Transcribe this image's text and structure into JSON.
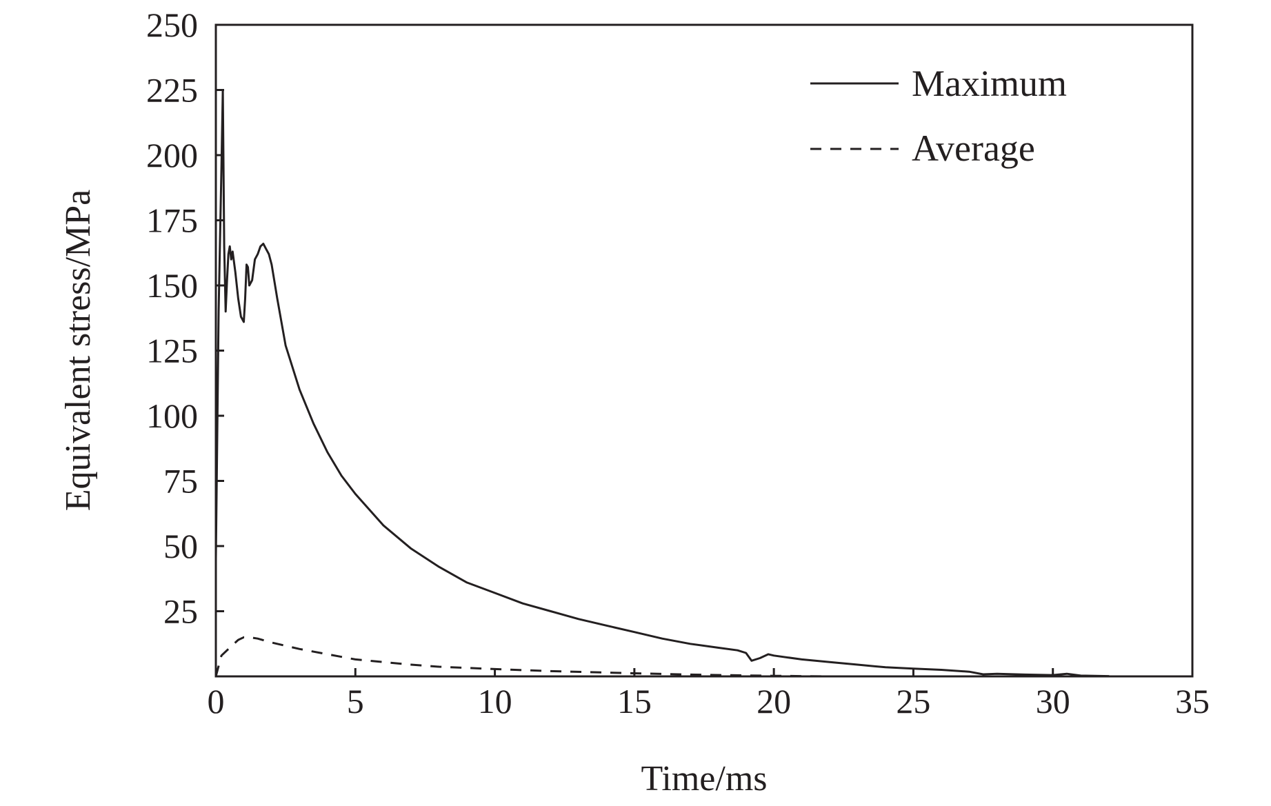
{
  "chart_data": {
    "type": "line",
    "title": "",
    "xlabel": "Time/ms",
    "ylabel": "Equivalent stress/MPa",
    "xlim": [
      0,
      35
    ],
    "ylim": [
      0,
      250
    ],
    "x_ticks": [
      0,
      5,
      10,
      15,
      20,
      25,
      30,
      35
    ],
    "y_ticks": [
      25,
      50,
      75,
      100,
      125,
      150,
      175,
      200,
      225,
      250
    ],
    "grid": false,
    "legend_position": "top-right",
    "line_color": "#231f20",
    "series": [
      {
        "name": "Maximum",
        "style": "solid",
        "x": [
          0,
          0.1,
          0.2,
          0.25,
          0.3,
          0.35,
          0.4,
          0.45,
          0.5,
          0.55,
          0.6,
          0.7,
          0.8,
          0.9,
          1.0,
          1.05,
          1.1,
          1.15,
          1.2,
          1.3,
          1.4,
          1.5,
          1.6,
          1.7,
          1.8,
          1.9,
          2.0,
          2.2,
          2.5,
          3.0,
          3.5,
          4.0,
          4.5,
          5.0,
          6.0,
          7.0,
          8.0,
          9.0,
          10.0,
          11.0,
          12.0,
          13.0,
          14.0,
          15.0,
          16.0,
          17.0,
          18.0,
          18.7,
          19.0,
          19.2,
          19.5,
          19.8,
          20.0,
          21.0,
          22.0,
          23.0,
          24.0,
          25.0,
          26.0,
          27.0,
          27.5,
          28.0,
          29.0,
          30.0,
          30.5,
          31.0,
          32.0
        ],
        "y": [
          45,
          140,
          195,
          225,
          165,
          140,
          152,
          162,
          165,
          160,
          163,
          155,
          145,
          138,
          136,
          145,
          158,
          157,
          150,
          152,
          160,
          162,
          165,
          166,
          164,
          162,
          158,
          145,
          127,
          110,
          97,
          86,
          77,
          70,
          58,
          49,
          42,
          36,
          32,
          28,
          25,
          22,
          19.5,
          17,
          14.5,
          12.5,
          11,
          10,
          9,
          6,
          7,
          8.5,
          8,
          6.5,
          5.5,
          4.5,
          3.5,
          3,
          2.5,
          1.8,
          0.8,
          1,
          0.7,
          0.5,
          1,
          0.3,
          0.1
        ]
      },
      {
        "name": "Average",
        "style": "dashed",
        "x": [
          0,
          0.2,
          0.5,
          0.8,
          1.0,
          1.2,
          1.5,
          2.0,
          3.0,
          4.0,
          5.0,
          6.0,
          7.0,
          8.0,
          10.0,
          12.0,
          15.0,
          17.0,
          20.0,
          22.0
        ],
        "y": [
          0,
          8,
          11,
          14,
          15,
          15,
          14.5,
          13,
          10.5,
          8.5,
          6.5,
          5.5,
          4.5,
          3.7,
          2.8,
          2,
          1.2,
          0.7,
          0.2,
          0
        ]
      }
    ]
  }
}
